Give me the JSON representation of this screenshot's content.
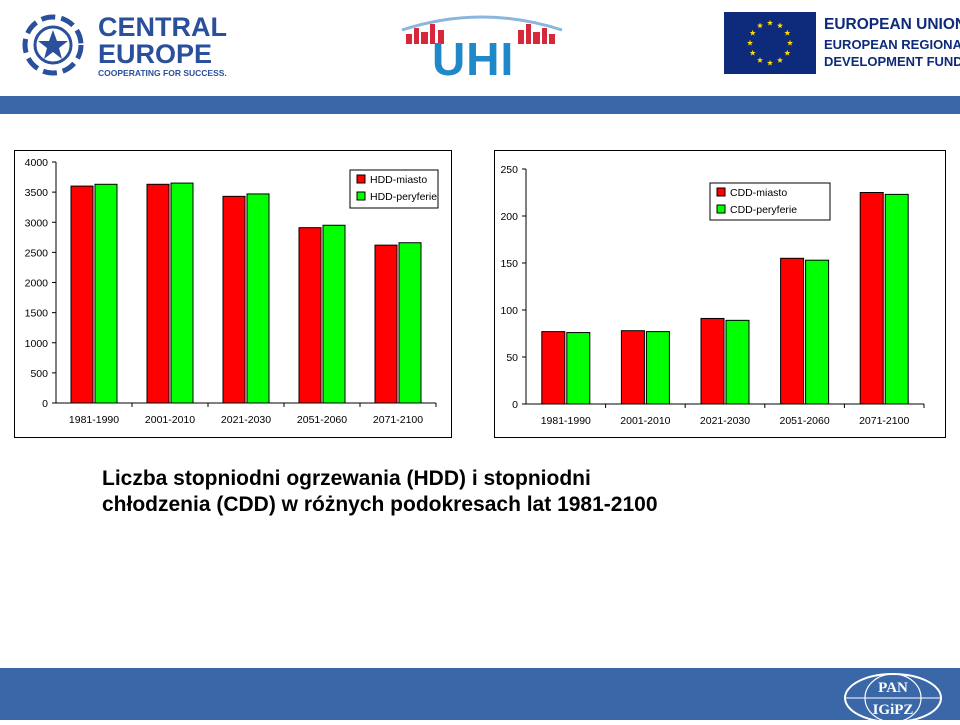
{
  "header": {
    "central_europe": {
      "line1": "CENTRAL",
      "line2": "EUROPE",
      "tagline": "COOPERATING FOR SUCCESS."
    },
    "uhi": {
      "text": "UHI"
    },
    "eu": {
      "title": "EUROPEAN UNION",
      "sub1": "EUROPEAN REGIONAL",
      "sub2": "DEVELOPMENT FUND"
    }
  },
  "caption": {
    "line1": "Liczba stopniodni ogrzewania (HDD) i stopniodni",
    "line2": "chłodzenia (CDD) w różnych podokresach lat 1981-2100"
  },
  "footer": {
    "logo_line1": "PAN",
    "logo_line2": "IGiPZ"
  },
  "colors": {
    "series_red": "#ff0000",
    "series_green": "#00ff00",
    "band_blue": "#3a67a8"
  },
  "chart_data": [
    {
      "type": "bar",
      "categories": [
        "1981-1990",
        "2001-2010",
        "2021-2030",
        "2051-2060",
        "2071-2100"
      ],
      "series": [
        {
          "name": "HDD-miasto",
          "color": "#ff0000",
          "values": [
            3600,
            3630,
            3430,
            2910,
            2620
          ]
        },
        {
          "name": "HDD-peryferie",
          "color": "#00ff00",
          "values": [
            3630,
            3650,
            3470,
            2950,
            2660
          ]
        }
      ],
      "ylim": [
        0,
        4000
      ],
      "yticks": [
        0,
        500,
        1000,
        1500,
        2000,
        2500,
        3000,
        3500,
        4000
      ],
      "grid": false,
      "legend": "top-right"
    },
    {
      "type": "bar",
      "categories": [
        "1981-1990",
        "2001-2010",
        "2021-2030",
        "2051-2060",
        "2071-2100"
      ],
      "series": [
        {
          "name": "CDD-miasto",
          "color": "#ff0000",
          "values": [
            77,
            78,
            91,
            155,
            225
          ]
        },
        {
          "name": "CDD-peryferie",
          "color": "#00ff00",
          "values": [
            76,
            77,
            89,
            153,
            223
          ]
        }
      ],
      "ylim": [
        0,
        250
      ],
      "yticks": [
        0,
        50,
        100,
        150,
        200,
        250
      ],
      "grid": false,
      "legend": "top-right"
    }
  ]
}
